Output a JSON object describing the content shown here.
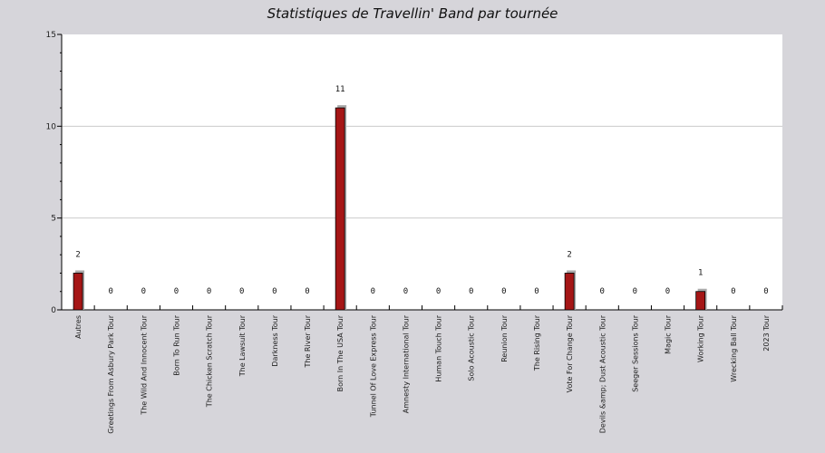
{
  "chart_data": {
    "type": "bar",
    "title": "Statistiques de Travellin' Band par tournée",
    "xlabel": "",
    "ylabel": "",
    "ylim": [
      0,
      15
    ],
    "yticks": [
      0,
      5,
      10,
      15
    ],
    "grid": true,
    "colors": {
      "bar": "#a51616",
      "shadow": "#aaaaaa",
      "plot_bg": "#ffffff",
      "page_bg": "#d6d5da",
      "grid": "#cccccc"
    },
    "categories": [
      "Autres",
      "Greetings From Asbury Park Tour",
      "The Wild And Innocent Tour",
      "Born To Run Tour",
      "The Chicken Scratch Tour",
      "The Lawsuit Tour",
      "Darkness Tour",
      "The River Tour",
      "Born In The USA Tour",
      "Tunnel Of Love Express Tour",
      "Amnesty International Tour",
      "Human Touch Tour",
      "Solo Acoustic Tour",
      "Reunion Tour",
      "The Rising Tour",
      "Vote For Change Tour",
      "Devils &amp; Dust Acoustic Tour",
      "Seeger Sessions Tour",
      "Magic Tour",
      "Working Tour",
      "Wrecking Ball Tour",
      "2023 Tour"
    ],
    "values": [
      2,
      0,
      0,
      0,
      0,
      0,
      0,
      0,
      11,
      0,
      0,
      0,
      0,
      0,
      0,
      2,
      0,
      0,
      0,
      1,
      0,
      0
    ]
  }
}
